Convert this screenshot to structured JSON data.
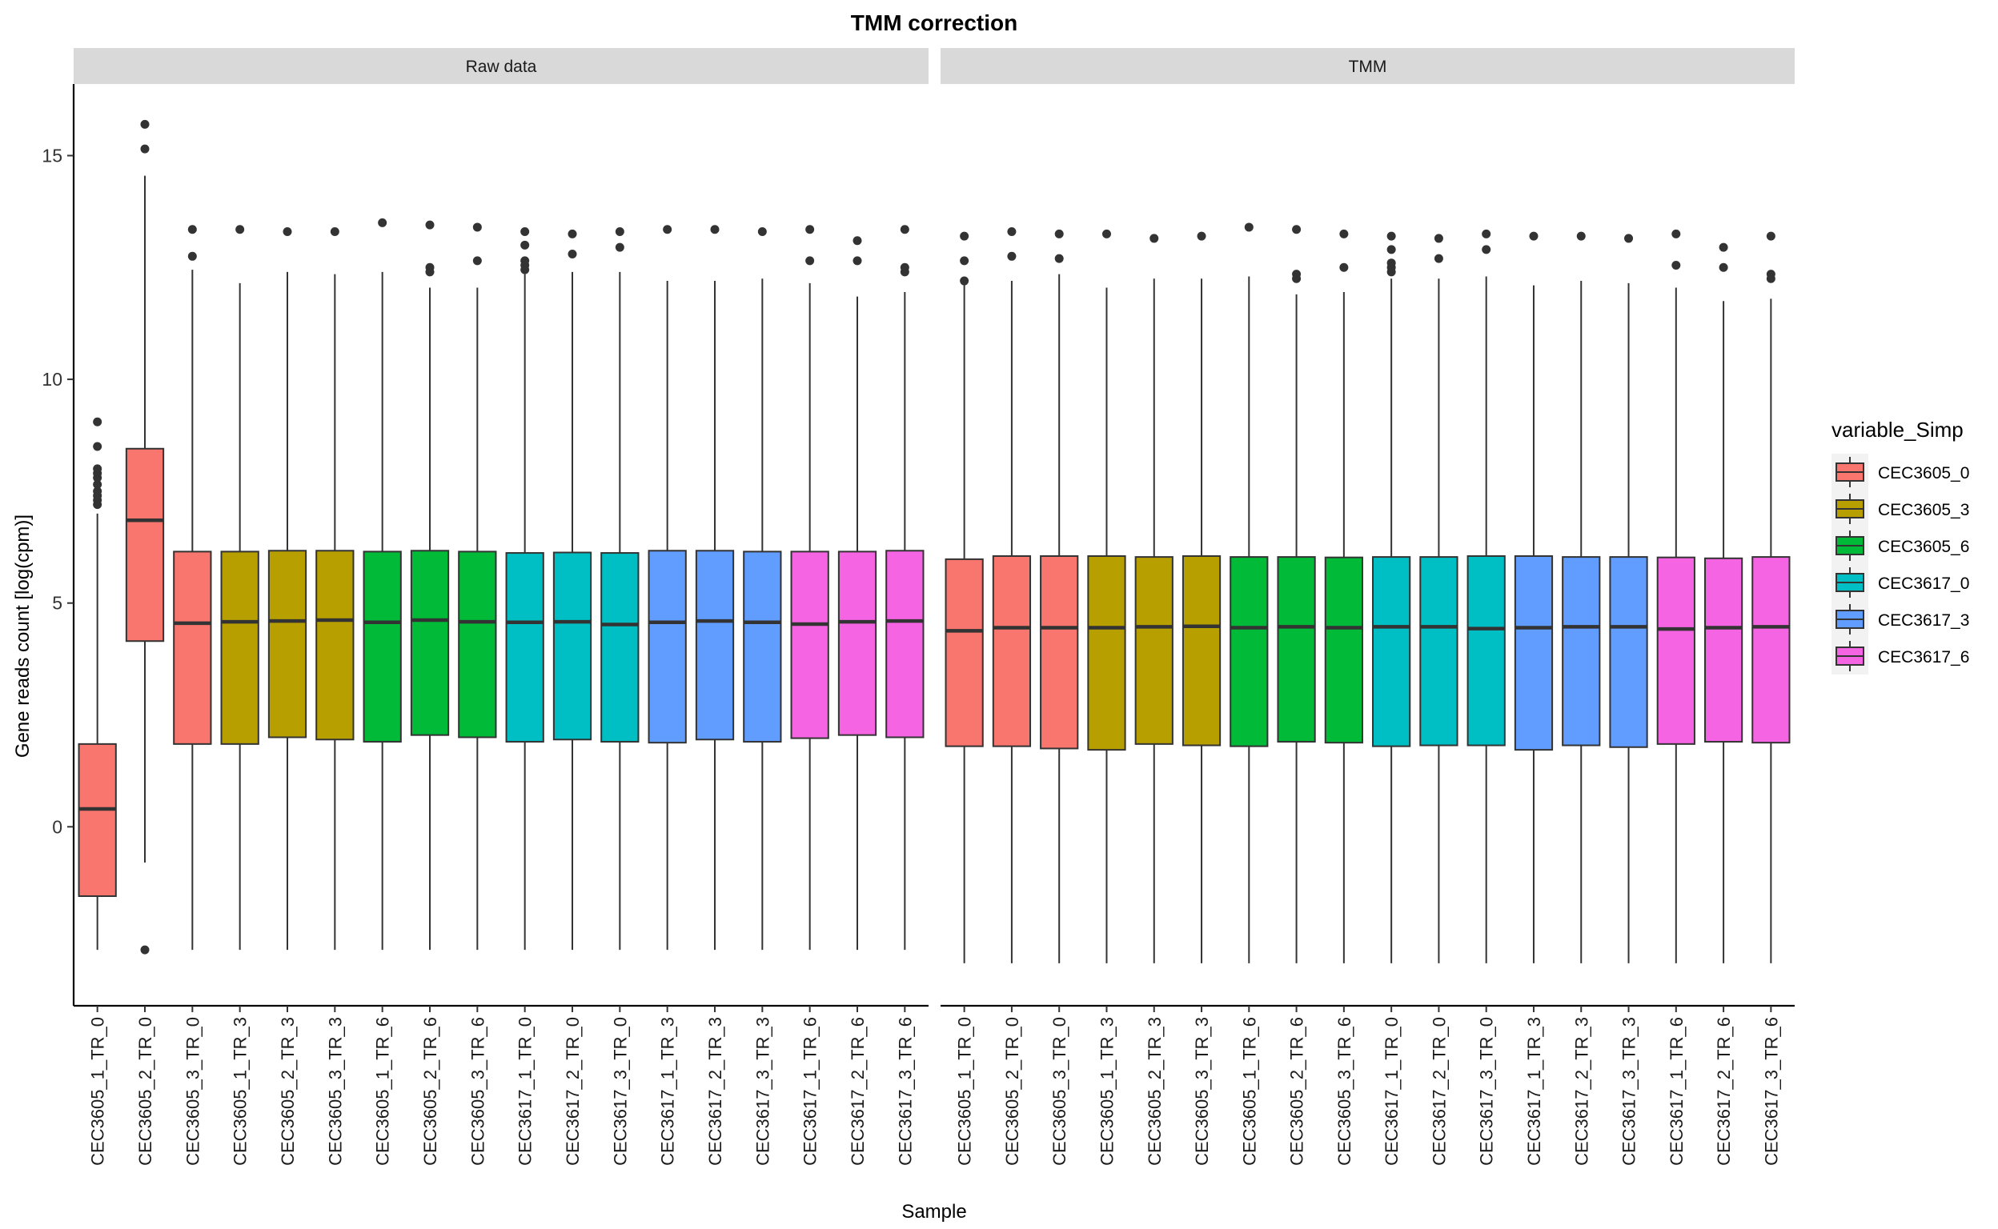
{
  "chart_data": {
    "type": "boxplot",
    "title": "TMM correction",
    "xlabel": "Sample",
    "ylabel": "Gene reads count [log(cpm)]",
    "ylim": [
      -4,
      16.6
    ],
    "yticks": [
      0,
      5,
      10,
      15
    ],
    "grid": false,
    "legend": {
      "title": "variable_Simp",
      "placement": "right",
      "entries": [
        {
          "name": "CEC3605_0",
          "color": "#F8766D"
        },
        {
          "name": "CEC3605_3",
          "color": "#B79F00"
        },
        {
          "name": "CEC3605_6",
          "color": "#00BA38"
        },
        {
          "name": "CEC3617_0",
          "color": "#00BFC4"
        },
        {
          "name": "CEC3617_3",
          "color": "#619CFF"
        },
        {
          "name": "CEC3617_6",
          "color": "#F564E3"
        }
      ]
    },
    "panels": [
      {
        "label": "Raw data",
        "boxes": [
          {
            "sample": "CEC3605_1_TR_0",
            "group": "CEC3605_0",
            "lower_whisker": -2.75,
            "q1": -1.55,
            "median": 0.4,
            "q3": 1.85,
            "upper_whisker": 7.0,
            "outliers": [
              7.2,
              7.3,
              7.4,
              7.5,
              7.65,
              7.8,
              7.9,
              8.0,
              8.5,
              9.05
            ]
          },
          {
            "sample": "CEC3605_2_TR_0",
            "group": "CEC3605_0",
            "lower_whisker": -0.8,
            "q1": 4.15,
            "median": 6.85,
            "q3": 8.45,
            "upper_whisker": 14.55,
            "outliers": [
              -2.75,
              15.15,
              15.7
            ]
          },
          {
            "sample": "CEC3605_3_TR_0",
            "group": "CEC3605_0",
            "lower_whisker": -2.75,
            "q1": 1.85,
            "median": 4.55,
            "q3": 6.15,
            "upper_whisker": 12.45,
            "outliers": [
              12.75,
              13.35
            ]
          },
          {
            "sample": "CEC3605_1_TR_3",
            "group": "CEC3605_3",
            "lower_whisker": -2.75,
            "q1": 1.85,
            "median": 4.58,
            "q3": 6.15,
            "upper_whisker": 12.15,
            "outliers": [
              13.35
            ]
          },
          {
            "sample": "CEC3605_2_TR_3",
            "group": "CEC3605_3",
            "lower_whisker": -2.75,
            "q1": 2.0,
            "median": 4.6,
            "q3": 6.17,
            "upper_whisker": 12.4,
            "outliers": [
              13.3
            ]
          },
          {
            "sample": "CEC3605_3_TR_3",
            "group": "CEC3605_3",
            "lower_whisker": -2.75,
            "q1": 1.95,
            "median": 4.62,
            "q3": 6.17,
            "upper_whisker": 12.35,
            "outliers": [
              13.3
            ]
          },
          {
            "sample": "CEC3605_1_TR_6",
            "group": "CEC3605_6",
            "lower_whisker": -2.75,
            "q1": 1.9,
            "median": 4.57,
            "q3": 6.15,
            "upper_whisker": 12.4,
            "outliers": [
              13.5
            ]
          },
          {
            "sample": "CEC3605_2_TR_6",
            "group": "CEC3605_6",
            "lower_whisker": -2.75,
            "q1": 2.05,
            "median": 4.62,
            "q3": 6.17,
            "upper_whisker": 12.05,
            "outliers": [
              12.4,
              12.5,
              13.45
            ]
          },
          {
            "sample": "CEC3605_3_TR_6",
            "group": "CEC3605_6",
            "lower_whisker": -2.75,
            "q1": 2.0,
            "median": 4.58,
            "q3": 6.15,
            "upper_whisker": 12.05,
            "outliers": [
              12.65,
              13.4
            ]
          },
          {
            "sample": "CEC3617_1_TR_0",
            "group": "CEC3617_0",
            "lower_whisker": -2.75,
            "q1": 1.9,
            "median": 4.57,
            "q3": 6.12,
            "upper_whisker": 12.35,
            "outliers": [
              12.45,
              12.55,
              12.65,
              13.0,
              13.3
            ]
          },
          {
            "sample": "CEC3617_2_TR_0",
            "group": "CEC3617_0",
            "lower_whisker": -2.75,
            "q1": 1.95,
            "median": 4.58,
            "q3": 6.13,
            "upper_whisker": 12.4,
            "outliers": [
              12.8,
              13.25
            ]
          },
          {
            "sample": "CEC3617_3_TR_0",
            "group": "CEC3617_0",
            "lower_whisker": -2.75,
            "q1": 1.9,
            "median": 4.52,
            "q3": 6.12,
            "upper_whisker": 12.4,
            "outliers": [
              12.95,
              13.3
            ]
          },
          {
            "sample": "CEC3617_1_TR_3",
            "group": "CEC3617_3",
            "lower_whisker": -2.75,
            "q1": 1.88,
            "median": 4.57,
            "q3": 6.17,
            "upper_whisker": 12.2,
            "outliers": [
              13.35
            ]
          },
          {
            "sample": "CEC3617_2_TR_3",
            "group": "CEC3617_3",
            "lower_whisker": -2.75,
            "q1": 1.95,
            "median": 4.6,
            "q3": 6.17,
            "upper_whisker": 12.2,
            "outliers": [
              13.35
            ]
          },
          {
            "sample": "CEC3617_3_TR_3",
            "group": "CEC3617_3",
            "lower_whisker": -2.75,
            "q1": 1.9,
            "median": 4.57,
            "q3": 6.15,
            "upper_whisker": 12.25,
            "outliers": [
              13.3
            ]
          },
          {
            "sample": "CEC3617_1_TR_6",
            "group": "CEC3617_6",
            "lower_whisker": -2.75,
            "q1": 1.98,
            "median": 4.53,
            "q3": 6.15,
            "upper_whisker": 12.15,
            "outliers": [
              12.65,
              13.35
            ]
          },
          {
            "sample": "CEC3617_2_TR_6",
            "group": "CEC3617_6",
            "lower_whisker": -2.75,
            "q1": 2.05,
            "median": 4.58,
            "q3": 6.15,
            "upper_whisker": 11.85,
            "outliers": [
              12.65,
              13.1
            ]
          },
          {
            "sample": "CEC3617_3_TR_6",
            "group": "CEC3617_6",
            "lower_whisker": -2.75,
            "q1": 2.0,
            "median": 4.6,
            "q3": 6.17,
            "upper_whisker": 11.95,
            "outliers": [
              12.4,
              12.5,
              13.35
            ]
          }
        ]
      },
      {
        "label": "TMM",
        "boxes": [
          {
            "sample": "CEC3605_1_TR_0",
            "group": "CEC3605_0",
            "lower_whisker": -3.05,
            "q1": 1.8,
            "median": 4.38,
            "q3": 5.98,
            "upper_whisker": 12.2,
            "outliers": [
              12.2,
              12.65,
              13.2
            ]
          },
          {
            "sample": "CEC3605_2_TR_0",
            "group": "CEC3605_0",
            "lower_whisker": -3.05,
            "q1": 1.8,
            "median": 4.45,
            "q3": 6.05,
            "upper_whisker": 12.2,
            "outliers": [
              12.75,
              13.3
            ]
          },
          {
            "sample": "CEC3605_3_TR_0",
            "group": "CEC3605_0",
            "lower_whisker": -3.05,
            "q1": 1.75,
            "median": 4.45,
            "q3": 6.05,
            "upper_whisker": 12.35,
            "outliers": [
              12.7,
              13.25
            ]
          },
          {
            "sample": "CEC3605_1_TR_3",
            "group": "CEC3605_3",
            "lower_whisker": -3.05,
            "q1": 1.72,
            "median": 4.45,
            "q3": 6.05,
            "upper_whisker": 12.05,
            "outliers": [
              13.25
            ]
          },
          {
            "sample": "CEC3605_2_TR_3",
            "group": "CEC3605_3",
            "lower_whisker": -3.05,
            "q1": 1.85,
            "median": 4.47,
            "q3": 6.03,
            "upper_whisker": 12.25,
            "outliers": [
              13.15
            ]
          },
          {
            "sample": "CEC3605_3_TR_3",
            "group": "CEC3605_3",
            "lower_whisker": -3.05,
            "q1": 1.82,
            "median": 4.48,
            "q3": 6.05,
            "upper_whisker": 12.25,
            "outliers": [
              13.2
            ]
          },
          {
            "sample": "CEC3605_1_TR_6",
            "group": "CEC3605_6",
            "lower_whisker": -3.05,
            "q1": 1.8,
            "median": 4.45,
            "q3": 6.03,
            "upper_whisker": 12.3,
            "outliers": [
              13.4
            ]
          },
          {
            "sample": "CEC3605_2_TR_6",
            "group": "CEC3605_6",
            "lower_whisker": -3.05,
            "q1": 1.9,
            "median": 4.47,
            "q3": 6.03,
            "upper_whisker": 11.9,
            "outliers": [
              12.25,
              12.35,
              13.35
            ]
          },
          {
            "sample": "CEC3605_3_TR_6",
            "group": "CEC3605_6",
            "lower_whisker": -3.05,
            "q1": 1.88,
            "median": 4.45,
            "q3": 6.02,
            "upper_whisker": 11.95,
            "outliers": [
              12.5,
              13.25
            ]
          },
          {
            "sample": "CEC3617_1_TR_0",
            "group": "CEC3617_0",
            "lower_whisker": -3.05,
            "q1": 1.8,
            "median": 4.47,
            "q3": 6.03,
            "upper_whisker": 12.25,
            "outliers": [
              12.4,
              12.5,
              12.6,
              12.9,
              13.2
            ]
          },
          {
            "sample": "CEC3617_2_TR_0",
            "group": "CEC3617_0",
            "lower_whisker": -3.05,
            "q1": 1.82,
            "median": 4.47,
            "q3": 6.03,
            "upper_whisker": 12.25,
            "outliers": [
              12.7,
              13.15
            ]
          },
          {
            "sample": "CEC3617_3_TR_0",
            "group": "CEC3617_0",
            "lower_whisker": -3.05,
            "q1": 1.82,
            "median": 4.43,
            "q3": 6.05,
            "upper_whisker": 12.3,
            "outliers": [
              12.9,
              13.25
            ]
          },
          {
            "sample": "CEC3617_1_TR_3",
            "group": "CEC3617_3",
            "lower_whisker": -3.05,
            "q1": 1.72,
            "median": 4.45,
            "q3": 6.05,
            "upper_whisker": 12.1,
            "outliers": [
              13.2
            ]
          },
          {
            "sample": "CEC3617_2_TR_3",
            "group": "CEC3617_3",
            "lower_whisker": -3.05,
            "q1": 1.82,
            "median": 4.47,
            "q3": 6.03,
            "upper_whisker": 12.2,
            "outliers": [
              13.2
            ]
          },
          {
            "sample": "CEC3617_3_TR_3",
            "group": "CEC3617_3",
            "lower_whisker": -3.05,
            "q1": 1.78,
            "median": 4.47,
            "q3": 6.03,
            "upper_whisker": 12.15,
            "outliers": [
              13.15
            ]
          },
          {
            "sample": "CEC3617_1_TR_6",
            "group": "CEC3617_6",
            "lower_whisker": -3.05,
            "q1": 1.85,
            "median": 4.42,
            "q3": 6.02,
            "upper_whisker": 12.05,
            "outliers": [
              12.55,
              13.25
            ]
          },
          {
            "sample": "CEC3617_2_TR_6",
            "group": "CEC3617_6",
            "lower_whisker": -3.05,
            "q1": 1.9,
            "median": 4.45,
            "q3": 6.0,
            "upper_whisker": 11.75,
            "outliers": [
              12.5,
              12.95
            ]
          },
          {
            "sample": "CEC3617_3_TR_6",
            "group": "CEC3617_6",
            "lower_whisker": -3.05,
            "q1": 1.88,
            "median": 4.47,
            "q3": 6.03,
            "upper_whisker": 11.8,
            "outliers": [
              12.25,
              12.35,
              13.2
            ]
          }
        ]
      }
    ]
  }
}
